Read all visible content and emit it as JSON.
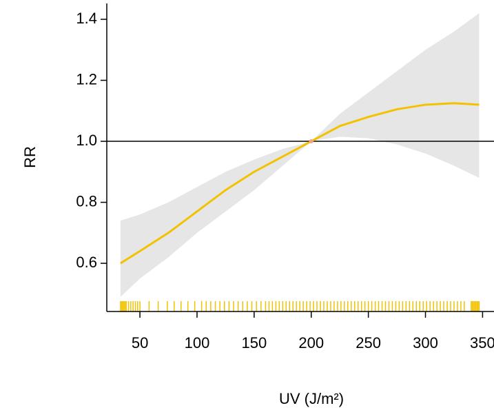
{
  "chart_data": {
    "type": "line",
    "xlabel": "UV (J/m²)",
    "ylabel": "RR",
    "x": [
      33,
      50,
      75,
      100,
      125,
      150,
      175,
      200,
      225,
      250,
      275,
      300,
      325,
      347
    ],
    "values": [
      0.6,
      0.64,
      0.7,
      0.77,
      0.84,
      0.9,
      0.95,
      1.0,
      1.05,
      1.08,
      1.105,
      1.12,
      1.125,
      1.12
    ],
    "lower": [
      0.49,
      0.55,
      0.62,
      0.7,
      0.77,
      0.84,
      0.92,
      1.0,
      1.015,
      1.01,
      0.99,
      0.96,
      0.92,
      0.88
    ],
    "upper": [
      0.74,
      0.76,
      0.8,
      0.85,
      0.9,
      0.94,
      0.975,
      1.0,
      1.09,
      1.16,
      1.23,
      1.3,
      1.36,
      1.42
    ],
    "color": "#f2c200",
    "band_color": "#e6e6e6",
    "reference": {
      "x": 200,
      "y": 1,
      "color": "#f4a090"
    },
    "hline": 1,
    "rug": [
      33,
      34,
      35,
      36,
      37,
      38,
      40,
      42,
      44,
      46,
      48,
      50,
      58,
      66,
      74,
      80,
      86,
      92,
      98,
      104,
      108,
      112,
      116,
      120,
      124,
      128,
      132,
      136,
      140,
      144,
      148,
      152,
      156,
      160,
      163,
      166,
      169,
      172,
      175,
      178,
      181,
      184,
      187,
      190,
      193,
      196,
      199,
      202,
      205,
      208,
      211,
      214,
      217,
      220,
      223,
      226,
      229,
      232,
      235,
      238,
      241,
      244,
      247,
      250,
      253,
      256,
      259,
      262,
      265,
      268,
      271,
      274,
      277,
      280,
      283,
      286,
      289,
      292,
      295,
      298,
      301,
      304,
      307,
      310,
      313,
      316,
      319,
      322,
      325,
      328,
      331,
      334,
      340,
      341,
      342,
      343,
      344,
      345,
      346,
      347
    ],
    "xlim": [
      21,
      360
    ],
    "ylim": [
      0.442,
      1.452
    ],
    "xticks": [
      50,
      100,
      150,
      200,
      250,
      300,
      350
    ],
    "yticks": [
      0.6,
      0.8,
      {
        "value": 1,
        "label": "1.0"
      },
      1.2,
      1.4
    ]
  }
}
